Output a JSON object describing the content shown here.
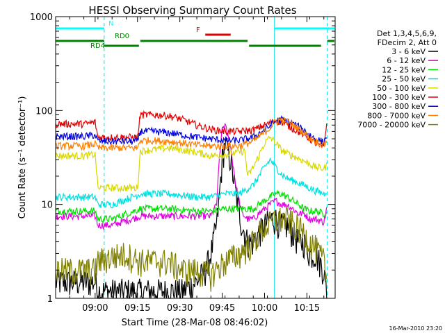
{
  "chart_data": {
    "type": "line",
    "title": "HESSI Observing Summary Count Rates",
    "xlabel": "Start Time (28-Mar-08 08:46:02)",
    "ylabel": "Count Rate (s⁻¹ detector⁻¹)",
    "x_unit": "minutes since 08:46:02",
    "xlim": [
      0,
      99
    ],
    "ylim": [
      1,
      1000
    ],
    "yscale": "log",
    "x_ticks": [
      {
        "value": 14,
        "label": "09:00"
      },
      {
        "value": 29,
        "label": "09:15"
      },
      {
        "value": 44,
        "label": "09:30"
      },
      {
        "value": 59,
        "label": "09:45"
      },
      {
        "value": 74,
        "label": "10:00"
      },
      {
        "value": 89,
        "label": "10:15"
      }
    ],
    "y_ticks": [
      {
        "value": 1,
        "label": "1"
      },
      {
        "value": 10,
        "label": "10"
      },
      {
        "value": 100,
        "label": "100"
      },
      {
        "value": 1000,
        "label": "1000"
      }
    ],
    "legend_header": [
      "Det 1,3,4,5,6,9,",
      "FDecim 2, Att 0"
    ],
    "legend_position": "right",
    "series": [
      {
        "name": "3 - 6 keV",
        "color": "#000000",
        "x": [
          0,
          5,
          10,
          14,
          15,
          20,
          30,
          40,
          45,
          50,
          53,
          55,
          57,
          58,
          59,
          60,
          62,
          64,
          66,
          68,
          70,
          72,
          74,
          76,
          78,
          80,
          82,
          84,
          86,
          88,
          90,
          92,
          95,
          96
        ],
        "y": [
          1.5,
          1.5,
          1.5,
          1.5,
          1.2,
          1.2,
          1.2,
          1.2,
          1.2,
          1.5,
          2,
          3,
          6,
          12,
          30,
          45,
          30,
          12,
          6,
          4,
          4,
          5,
          6,
          7,
          7,
          6,
          6,
          5,
          4,
          4,
          3,
          3,
          2,
          1.2
        ]
      },
      {
        "name": "6 - 12 keV",
        "color": "#e000e0",
        "x": [
          0,
          5,
          10,
          14,
          15,
          20,
          30,
          40,
          50,
          55,
          57,
          58,
          59,
          60,
          62,
          64,
          66,
          68,
          70,
          72,
          74,
          76,
          78,
          80,
          82,
          84,
          86,
          88,
          90,
          92,
          95,
          96
        ],
        "y": [
          7.5,
          7.5,
          7.5,
          7.5,
          6,
          6,
          7.5,
          7.5,
          7.5,
          7.5,
          10,
          30,
          65,
          70,
          40,
          15,
          8,
          7,
          7,
          8,
          9,
          10,
          11,
          10,
          10,
          9,
          8,
          8,
          7,
          7,
          6.5,
          9
        ]
      },
      {
        "name": "12 - 25 keV",
        "color": "#00e000",
        "x": [
          0,
          5,
          10,
          14,
          15,
          20,
          30,
          40,
          50,
          55,
          60,
          65,
          70,
          72,
          74,
          76,
          78,
          80,
          82,
          84,
          86,
          88,
          90,
          92,
          95,
          96
        ],
        "y": [
          8.5,
          8.5,
          8.5,
          8.5,
          7,
          7,
          9,
          9,
          8.5,
          8.5,
          9,
          9,
          9,
          10,
          11,
          12,
          13,
          13,
          12,
          11,
          10,
          9,
          8.5,
          8.5,
          8,
          8.5
        ]
      },
      {
        "name": "25 - 50 keV",
        "color": "#00e0e0",
        "x": [
          0,
          5,
          10,
          14,
          15,
          20,
          30,
          40,
          50,
          55,
          60,
          65,
          70,
          72,
          74,
          76,
          78,
          80,
          82,
          84,
          86,
          88,
          90,
          92,
          95,
          96
        ],
        "y": [
          12,
          12,
          12,
          12,
          10,
          10,
          13,
          13,
          12,
          12,
          13,
          13,
          16,
          20,
          25,
          30,
          25,
          21,
          19,
          18,
          17,
          16,
          15,
          14,
          13,
          14
        ]
      },
      {
        "name": "50 - 100 keV",
        "color": "#d8d800",
        "x": [
          0,
          5,
          10,
          14,
          15,
          20,
          29,
          30,
          40,
          50,
          55,
          60,
          67,
          68,
          70,
          72,
          74,
          76,
          78,
          80,
          82,
          84,
          86,
          88,
          90,
          92,
          95,
          96
        ],
        "y": [
          33,
          33,
          33,
          34,
          15,
          15,
          15,
          37,
          40,
          36,
          33,
          34,
          37,
          20,
          25,
          33,
          45,
          52,
          45,
          38,
          35,
          33,
          31,
          29,
          27,
          25,
          24,
          26
        ]
      },
      {
        "name": "100 - 300 keV",
        "color": "#e00000",
        "x": [
          0,
          5,
          10,
          14,
          15,
          20,
          29,
          30,
          35,
          40,
          45,
          50,
          55,
          60,
          65,
          70,
          75,
          78,
          80,
          82,
          85,
          88,
          90,
          92,
          95,
          96
        ],
        "y": [
          72,
          72,
          72,
          75,
          52,
          52,
          52,
          90,
          90,
          88,
          80,
          70,
          63,
          60,
          60,
          62,
          72,
          78,
          75,
          70,
          62,
          55,
          50,
          45,
          40,
          75
        ]
      },
      {
        "name": "300 - 800 keV",
        "color": "#0000e0",
        "x": [
          0,
          5,
          10,
          14,
          15,
          20,
          29,
          30,
          35,
          40,
          45,
          50,
          55,
          60,
          65,
          70,
          75,
          78,
          80,
          82,
          85,
          88,
          90,
          92,
          95,
          96
        ],
        "y": [
          53,
          53,
          53,
          55,
          47,
          47,
          47,
          60,
          60,
          58,
          55,
          52,
          50,
          48,
          48,
          52,
          65,
          78,
          80,
          77,
          70,
          62,
          55,
          50,
          46,
          55
        ]
      },
      {
        "name": "800 - 7000 keV",
        "color": "#ff8000",
        "x": [
          0,
          5,
          10,
          14,
          15,
          20,
          29,
          30,
          35,
          40,
          45,
          50,
          55,
          60,
          65,
          70,
          75,
          78,
          80,
          82,
          85,
          88,
          90,
          92,
          95,
          96
        ],
        "y": [
          42,
          42,
          42,
          44,
          40,
          40,
          40,
          48,
          48,
          47,
          45,
          43,
          42,
          42,
          42,
          47,
          62,
          77,
          80,
          76,
          68,
          58,
          52,
          47,
          43,
          47
        ]
      },
      {
        "name": "7000 - 20000 keV",
        "color": "#808000",
        "x": [
          0,
          5,
          10,
          14,
          15,
          20,
          25,
          30,
          35,
          40,
          45,
          50,
          55,
          60,
          65,
          70,
          72,
          75,
          78,
          80,
          82,
          85,
          88,
          90,
          92,
          95,
          96
        ],
        "y": [
          2,
          2,
          2,
          2,
          2.5,
          2.8,
          3,
          2.5,
          2.5,
          2.5,
          2,
          2,
          1.8,
          2.5,
          3,
          4,
          5,
          6,
          7,
          7,
          7,
          6,
          5,
          4,
          3.5,
          2.5,
          1.5
        ]
      }
    ],
    "vertical_lines": [
      {
        "x": 17.2,
        "style": "dashed",
        "color": "#00e0e0"
      },
      {
        "x": 77.5,
        "style": "solid",
        "color": "#00e0e0"
      },
      {
        "x": 96.2,
        "style": "dashed",
        "color": "#00e0e0"
      }
    ],
    "state_bars": [
      {
        "label": "N",
        "color": "#00ffff",
        "row": 0,
        "segments": [
          [
            0,
            17.2
          ],
          [
            77.5,
            99
          ]
        ]
      },
      {
        "label": "F",
        "color": "#e00000",
        "row": 1,
        "segments": [
          [
            53,
            62
          ]
        ]
      },
      {
        "label": "RD0",
        "color": "#008000",
        "row": 2,
        "segments": [
          [
            0,
            17.2
          ],
          [
            30,
            68
          ],
          [
            96.2,
            99
          ]
        ]
      },
      {
        "label": "RD4",
        "color": "#008000",
        "row": 3,
        "segments": [
          [
            17.2,
            29.5
          ],
          [
            68.5,
            94
          ]
        ]
      }
    ],
    "footer_timestamp": "16-Mar-2010 23:20"
  }
}
